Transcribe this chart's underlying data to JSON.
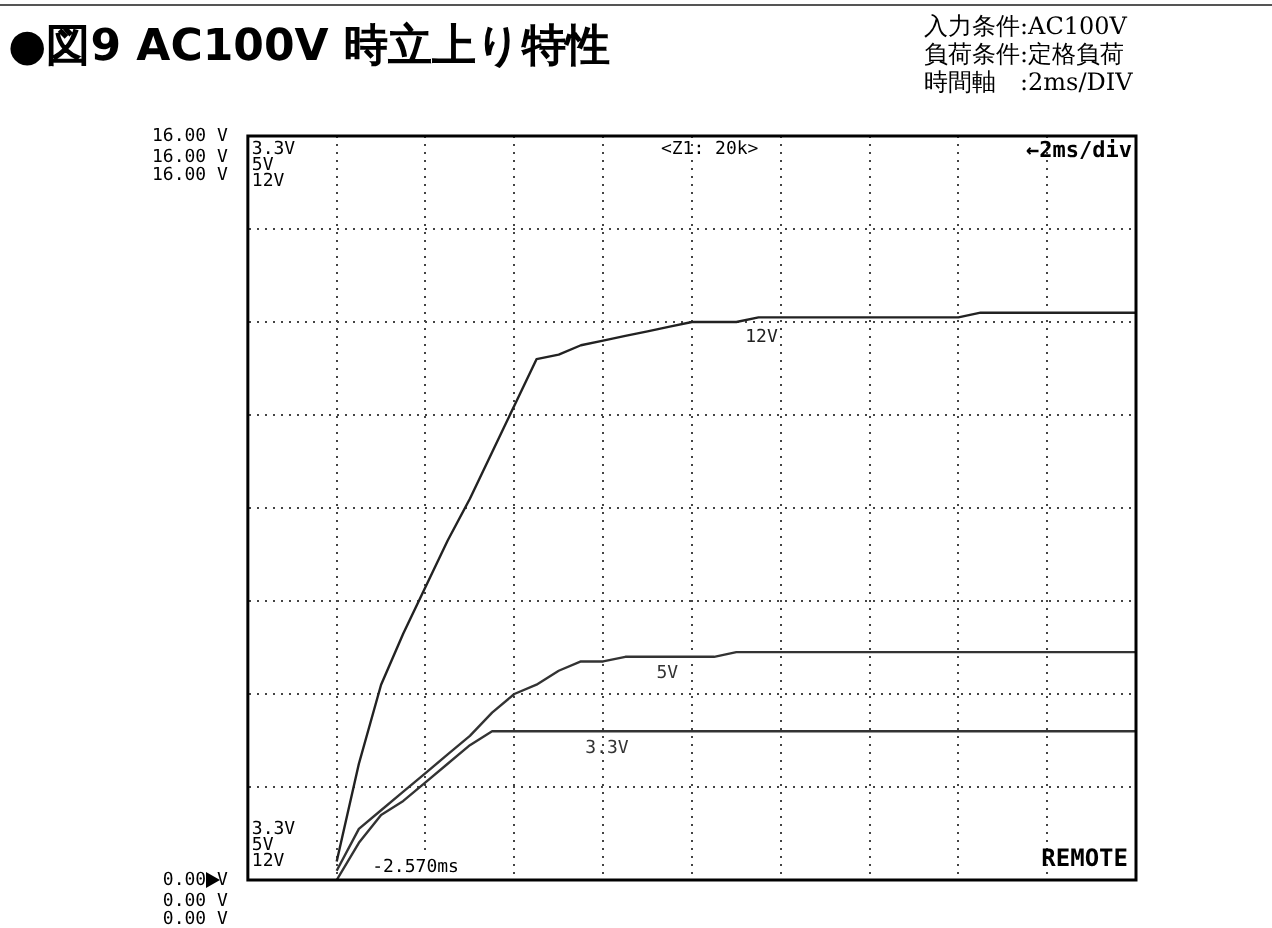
{
  "chart_data": {
    "type": "line",
    "title": "●図9 AC100V 時立上り特性",
    "annotations": [
      "入力条件:AC100V",
      "負荷条件:定格負荷",
      "時間軸　:2ms/DIV",
      "3.3V\n5V\n12V",
      "<Z1: 20k>",
      "←2ms/div",
      "3.3V\n5V\n12V",
      "-2.570ms",
      "REMOTE",
      "16.00 V\n16.00 V",
      "0.00 V\n0.00 V"
    ],
    "categories": [
      null,
      null,
      null,
      null,
      null,
      null,
      null,
      null,
      null,
      null,
      null,
      null,
      null,
      null,
      null,
      null,
      null,
      null,
      null,
      null,
      null,
      null,
      null,
      null,
      null,
      null,
      null,
      null,
      null,
      null,
      null,
      null,
      null,
      null,
      null,
      null,
      null,
      null,
      null,
      null,
      null
    ],
    "ylim": [
      0,
      16
    ],
    "yticks": [
      {
        "value": 0,
        "label": "0.00 V"
      },
      {
        "value": 2,
        "label": null
      },
      {
        "value": 4,
        "label": null
      },
      {
        "value": 6,
        "label": null
      },
      {
        "value": 8,
        "label": null
      },
      {
        "value": 10,
        "label": null
      },
      {
        "value": 12,
        "label": null
      },
      {
        "value": 14,
        "label": null
      },
      {
        "value": 16,
        "label": "16.00 V"
      }
    ],
    "tick_labels": "y",
    "grid": true,
    "legend": false,
    "line_style": "solid",
    "marker": "none",
    "series": [
      {
        "name": "12V",
        "color": "#222222",
        "values": [
          null,
          null,
          null,
          null,
          0.4,
          2.5,
          4.2,
          5.3,
          6.3,
          7.3,
          8.2,
          9.2,
          10.2,
          11.2,
          11.3,
          11.5,
          11.6,
          11.7,
          11.8,
          11.9,
          12,
          12,
          12,
          12.1,
          12.1,
          12.1,
          12.1,
          12.1,
          12.1,
          12.1,
          12.1,
          12.1,
          12.1,
          12.2,
          12.2,
          12.2,
          12.2,
          12.2,
          12.2,
          12.2,
          12.2
        ]
      },
      {
        "name": "5V",
        "color": "#333333",
        "values": [
          null,
          null,
          null,
          null,
          0.2,
          1.1,
          1.5,
          1.9,
          2.3,
          2.7,
          3.1,
          3.6,
          4,
          4.2,
          4.5,
          4.7,
          4.7,
          4.8,
          4.8,
          4.8,
          4.8,
          4.8,
          4.9,
          4.9,
          4.9,
          4.9,
          4.9,
          4.9,
          4.9,
          4.9,
          4.9,
          4.9,
          4.9,
          4.9,
          4.9,
          4.9,
          4.9,
          4.9,
          4.9,
          4.9,
          4.9
        ]
      },
      {
        "name": "3.3V",
        "color": "#333333",
        "values": [
          null,
          null,
          null,
          null,
          0,
          0.8,
          1.4,
          1.7,
          2.1,
          2.5,
          2.9,
          3.2,
          3.2,
          3.2,
          3.2,
          3.2,
          3.2,
          3.2,
          3.2,
          3.2,
          3.2,
          3.2,
          3.2,
          3.2,
          3.2,
          3.2,
          3.2,
          3.2,
          3.2,
          3.2,
          3.2,
          3.2,
          3.2,
          3.2,
          3.2,
          3.2,
          3.2,
          3.2,
          3.2,
          3.2,
          3.2
        ]
      }
    ]
  }
}
